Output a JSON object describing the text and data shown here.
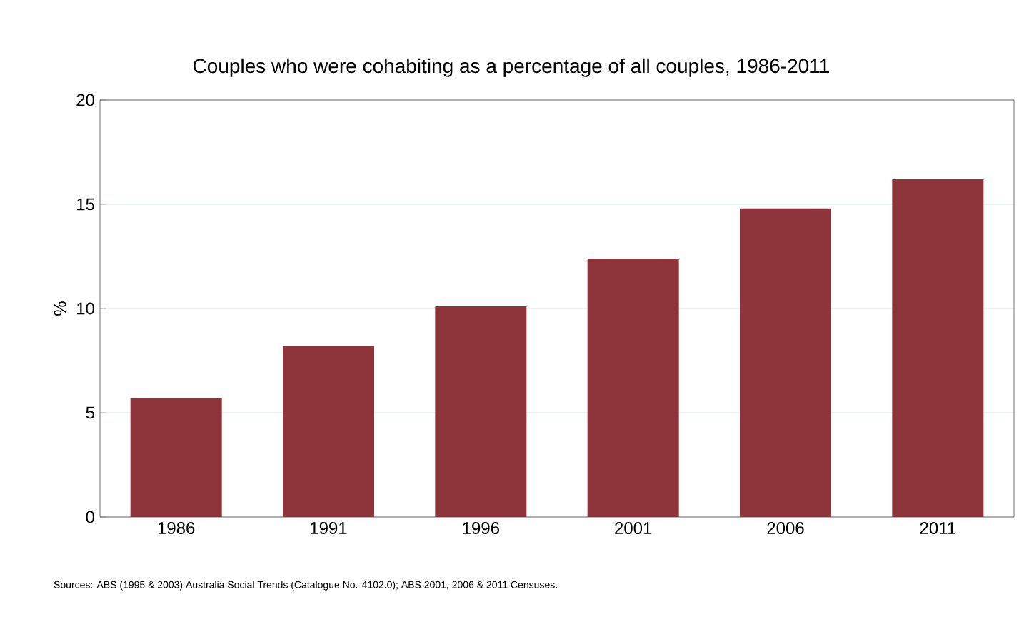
{
  "chart_data": {
    "type": "bar",
    "title": "Couples who were cohabiting as a percentage of all couples, 1986-2011",
    "ylabel": "%",
    "categories": [
      "1986",
      "1991",
      "1996",
      "2001",
      "2006",
      "2011"
    ],
    "values": [
      5.7,
      8.2,
      10.1,
      12.4,
      14.8,
      16.2
    ],
    "color": "#8e353c",
    "ylim": [
      0,
      20
    ],
    "yticks": [
      0,
      5,
      10,
      15,
      20
    ],
    "grid": "y",
    "annotations": [
      "Sources: ABS (1995 & 2003) Australia Social Trends (Catalogue No. 4102.0); ABS 2001, 2006 & 2011 Censuses."
    ]
  }
}
